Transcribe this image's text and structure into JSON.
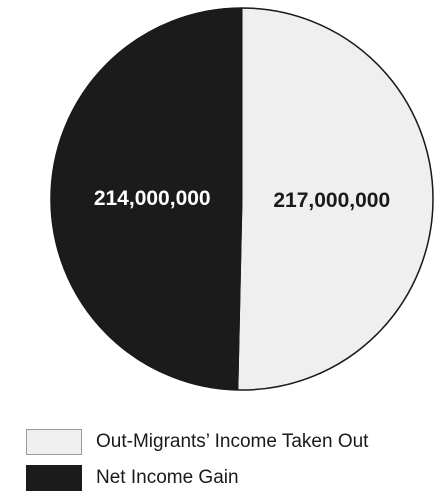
{
  "chart_data": {
    "type": "pie",
    "title": "",
    "slices": [
      {
        "label": "Out-Migrants’ Income Taken Out",
        "value": 217000000,
        "value_label": "217,000,000",
        "color": "#efefef",
        "text_color": "#1a1a1a"
      },
      {
        "label": "Net Income Gain",
        "value": 214000000,
        "value_label": "214,000,000",
        "color": "#1b1b1b",
        "text_color": "#ffffff"
      }
    ],
    "legend_position": "bottom-left",
    "start_angle": "top, clockwise"
  }
}
